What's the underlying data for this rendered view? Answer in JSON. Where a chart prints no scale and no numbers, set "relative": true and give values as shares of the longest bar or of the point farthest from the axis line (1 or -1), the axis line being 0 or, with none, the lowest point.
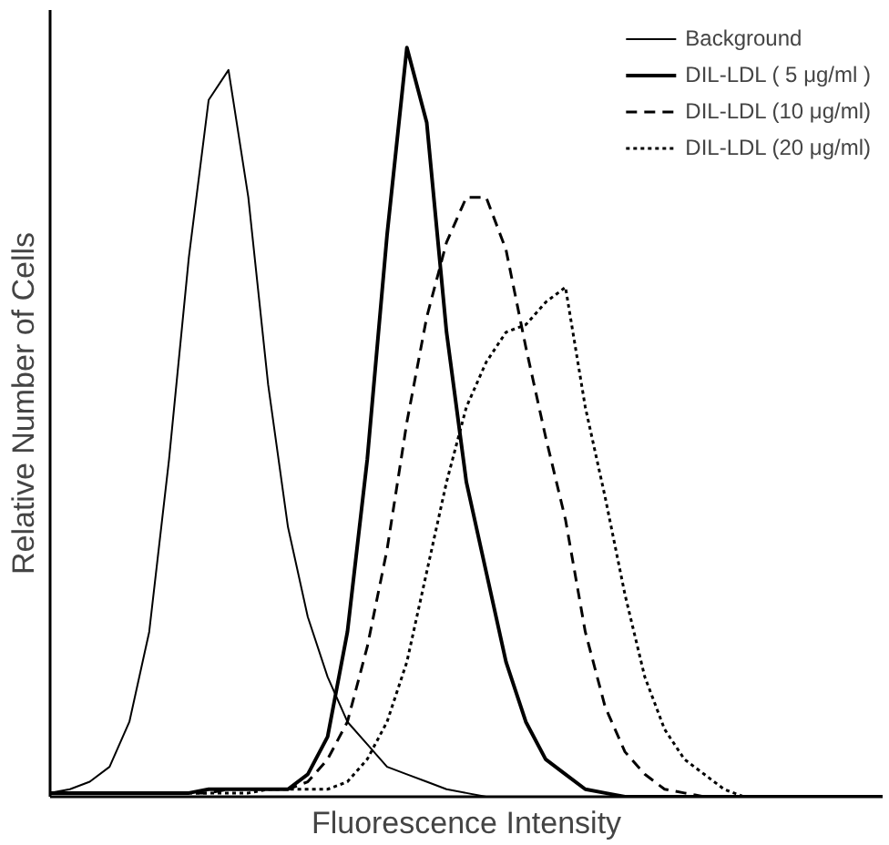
{
  "chart_data": {
    "type": "line",
    "relative": true,
    "xlabel": "Fluorescence Intensity",
    "ylabel": "Relative Number of Cells",
    "legend": "top right",
    "marker": "none",
    "categories": [
      null,
      null,
      null,
      null,
      null,
      null,
      null,
      null,
      null,
      null,
      null,
      null,
      null,
      null,
      null,
      null,
      null,
      null,
      null,
      null,
      null,
      null,
      null,
      null,
      null,
      null,
      null,
      null,
      null,
      null,
      null,
      null,
      null,
      null,
      null,
      null,
      null,
      null,
      null,
      null,
      null,
      null,
      null
    ],
    "series": [
      {
        "name": "Background",
        "color": "#000000",
        "line_style": "solid",
        "values": [
          0.005,
          0.01,
          0.02,
          0.04,
          0.1,
          0.22,
          0.45,
          0.72,
          0.93,
          0.97,
          0.8,
          0.55,
          0.36,
          0.24,
          0.16,
          0.1,
          0.07,
          0.04,
          0.03,
          0.02,
          0.01,
          0.005,
          0,
          0,
          0,
          0,
          0,
          0,
          0,
          0,
          0,
          0,
          0,
          0,
          0,
          0,
          0,
          0,
          0,
          0,
          0,
          0,
          0
        ]
      },
      {
        "name": "DIL-LDL ( 5 μg/ml )",
        "color": "#000000",
        "line_style": "solid",
        "values": [
          0.005,
          0.005,
          0.005,
          0.005,
          0.005,
          0.005,
          0.005,
          0.005,
          0.01,
          0.01,
          0.01,
          0.01,
          0.01,
          0.03,
          0.08,
          0.22,
          0.45,
          0.75,
          1,
          0.9,
          0.62,
          0.42,
          0.3,
          0.18,
          0.1,
          0.05,
          0.03,
          0.01,
          0.005,
          0,
          0,
          0,
          0,
          0,
          0,
          0,
          0,
          0,
          0,
          0,
          0,
          0,
          0
        ]
      },
      {
        "name": "DIL-LDL (10 μg/ml)",
        "color": "#000000",
        "line_style": "dashed",
        "values": [
          0.005,
          0.005,
          0.005,
          0.005,
          0.005,
          0.005,
          0.005,
          0.005,
          0.005,
          0.01,
          0.01,
          0.01,
          0.01,
          0.02,
          0.05,
          0.1,
          0.2,
          0.33,
          0.5,
          0.64,
          0.74,
          0.8,
          0.8,
          0.73,
          0.6,
          0.48,
          0.37,
          0.22,
          0.12,
          0.06,
          0.03,
          0.01,
          0.005,
          0,
          0,
          0,
          0,
          0,
          0,
          0,
          0,
          0,
          0
        ]
      },
      {
        "name": "DIL-LDL (20 μg/ml)",
        "color": "#000000",
        "line_style": "dotted",
        "values": [
          0.005,
          0.005,
          0.005,
          0.005,
          0.005,
          0.005,
          0.005,
          0.005,
          0.005,
          0.005,
          0.005,
          0.01,
          0.01,
          0.01,
          0.01,
          0.02,
          0.05,
          0.1,
          0.18,
          0.3,
          0.42,
          0.52,
          0.58,
          0.62,
          0.63,
          0.66,
          0.68,
          0.52,
          0.4,
          0.27,
          0.16,
          0.09,
          0.05,
          0.03,
          0.01,
          0,
          0,
          0,
          0,
          0,
          0,
          0,
          0
        ]
      }
    ]
  }
}
